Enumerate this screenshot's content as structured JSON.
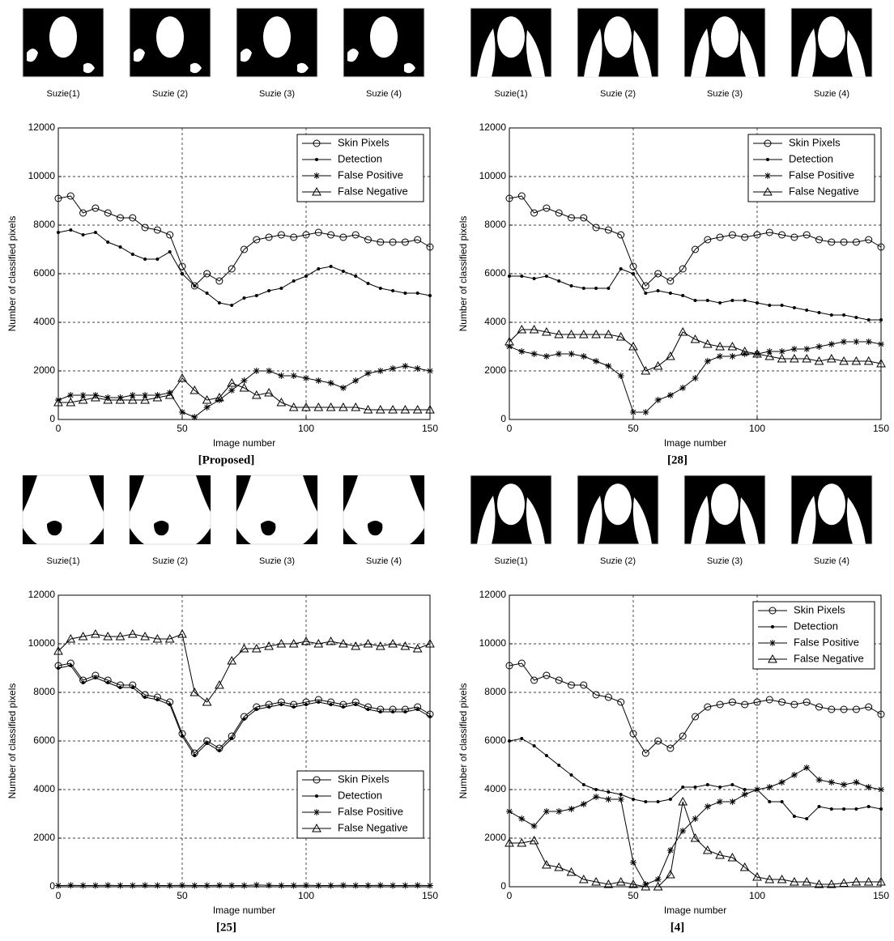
{
  "chart_data": [
    {
      "type": "line",
      "thumbnails": [
        "Suzie(1)",
        "Suzie (2)",
        "Suzie (3)",
        "Suzie (4)"
      ],
      "caption": "[Proposed]",
      "xlabel": "Image number",
      "ylabel": "Number of classified pixels",
      "xlim": [
        0,
        150
      ],
      "ylim": [
        0,
        12000
      ],
      "xticks": [
        0,
        50,
        100,
        150
      ],
      "yticks": [
        0,
        2000,
        4000,
        6000,
        8000,
        10000,
        12000
      ],
      "grid": true,
      "legend": "upper right",
      "x": [
        0,
        5,
        10,
        15,
        20,
        25,
        30,
        35,
        40,
        45,
        50,
        55,
        60,
        65,
        70,
        75,
        80,
        85,
        90,
        95,
        100,
        105,
        110,
        115,
        120,
        125,
        130,
        135,
        140,
        145,
        150
      ],
      "series": [
        {
          "name": "Skin Pixels",
          "color": "#000000",
          "marker": "o",
          "values": [
            9100,
            9200,
            8500,
            8700,
            8500,
            8300,
            8300,
            7900,
            7800,
            7600,
            6300,
            5500,
            6000,
            5700,
            6200,
            7000,
            7400,
            7500,
            7600,
            7500,
            7600,
            7700,
            7600,
            7500,
            7600,
            7400,
            7300,
            7300,
            7300,
            7400,
            7100
          ]
        },
        {
          "name": "Detection",
          "color": "#000000",
          "marker": ".",
          "values": [
            7700,
            7800,
            7600,
            7700,
            7300,
            7100,
            6800,
            6600,
            6600,
            6900,
            6000,
            5500,
            5200,
            4800,
            4700,
            5000,
            5100,
            5300,
            5400,
            5700,
            5900,
            6200,
            6300,
            6100,
            5900,
            5600,
            5400,
            5300,
            5200,
            5200,
            5100
          ]
        },
        {
          "name": "False Positive",
          "color": "#000000",
          "marker": "*",
          "values": [
            800,
            1000,
            1000,
            1000,
            900,
            900,
            1000,
            1000,
            1000,
            1100,
            300,
            100,
            500,
            800,
            1200,
            1600,
            2000,
            2000,
            1800,
            1800,
            1700,
            1600,
            1500,
            1300,
            1600,
            1900,
            2000,
            2100,
            2200,
            2100,
            2000
          ]
        },
        {
          "name": "False Negative",
          "color": "#000000",
          "marker": "^",
          "values": [
            700,
            700,
            800,
            900,
            800,
            800,
            800,
            800,
            900,
            1000,
            1700,
            1200,
            800,
            900,
            1500,
            1300,
            1000,
            1100,
            700,
            500,
            500,
            500,
            500,
            500,
            500,
            400,
            400,
            400,
            400,
            400,
            400
          ]
        }
      ]
    },
    {
      "type": "line",
      "thumbnails": [
        "Suzie(1)",
        "Suzie (2)",
        "Suzie (3)",
        "Suzie (4)"
      ],
      "caption": "[28]",
      "xlabel": "Image number",
      "ylabel": "Number of classified pixels",
      "xlim": [
        0,
        150
      ],
      "ylim": [
        0,
        12000
      ],
      "xticks": [
        0,
        50,
        100,
        150
      ],
      "yticks": [
        0,
        2000,
        4000,
        6000,
        8000,
        10000,
        12000
      ],
      "grid": true,
      "legend": "upper right",
      "x": [
        0,
        5,
        10,
        15,
        20,
        25,
        30,
        35,
        40,
        45,
        50,
        55,
        60,
        65,
        70,
        75,
        80,
        85,
        90,
        95,
        100,
        105,
        110,
        115,
        120,
        125,
        130,
        135,
        140,
        145,
        150
      ],
      "series": [
        {
          "name": "Skin Pixels",
          "color": "#000000",
          "marker": "o",
          "values": [
            9100,
            9200,
            8500,
            8700,
            8500,
            8300,
            8300,
            7900,
            7800,
            7600,
            6300,
            5500,
            6000,
            5700,
            6200,
            7000,
            7400,
            7500,
            7600,
            7500,
            7600,
            7700,
            7600,
            7500,
            7600,
            7400,
            7300,
            7300,
            7300,
            7400,
            7100
          ]
        },
        {
          "name": "Detection",
          "color": "#000000",
          "marker": ".",
          "values": [
            5900,
            5900,
            5800,
            5900,
            5700,
            5500,
            5400,
            5400,
            5400,
            6200,
            6000,
            5200,
            5300,
            5200,
            5100,
            4900,
            4900,
            4800,
            4900,
            4900,
            4800,
            4700,
            4700,
            4600,
            4500,
            4400,
            4300,
            4300,
            4200,
            4100,
            4100
          ]
        },
        {
          "name": "False Positive",
          "color": "#000000",
          "marker": "*",
          "values": [
            3000,
            2800,
            2700,
            2600,
            2700,
            2700,
            2600,
            2400,
            2200,
            1800,
            300,
            300,
            800,
            1000,
            1300,
            1700,
            2400,
            2600,
            2600,
            2700,
            2700,
            2800,
            2800,
            2900,
            2900,
            3000,
            3100,
            3200,
            3200,
            3200,
            3100
          ]
        },
        {
          "name": "False Negative",
          "color": "#000000",
          "marker": "^",
          "values": [
            3200,
            3700,
            3700,
            3600,
            3500,
            3500,
            3500,
            3500,
            3500,
            3400,
            3000,
            2000,
            2200,
            2600,
            3600,
            3300,
            3100,
            3000,
            3000,
            2800,
            2700,
            2600,
            2500,
            2500,
            2500,
            2400,
            2500,
            2400,
            2400,
            2400,
            2300
          ]
        }
      ]
    },
    {
      "type": "line",
      "thumbnails": [
        "Suzie(1)",
        "Suzie (2)",
        "Suzie (3)",
        "Suzie (4)"
      ],
      "caption": "[25]",
      "xlabel": "Image number",
      "ylabel": "Number of classified pixels",
      "xlim": [
        0,
        150
      ],
      "ylim": [
        0,
        12000
      ],
      "xticks": [
        0,
        50,
        100,
        150
      ],
      "yticks": [
        0,
        2000,
        4000,
        6000,
        8000,
        10000,
        12000
      ],
      "grid": true,
      "legend": "lower right",
      "x": [
        0,
        5,
        10,
        15,
        20,
        25,
        30,
        35,
        40,
        45,
        50,
        55,
        60,
        65,
        70,
        75,
        80,
        85,
        90,
        95,
        100,
        105,
        110,
        115,
        120,
        125,
        130,
        135,
        140,
        145,
        150
      ],
      "series": [
        {
          "name": "Skin Pixels",
          "color": "#000000",
          "marker": "o",
          "values": [
            9100,
            9200,
            8500,
            8700,
            8500,
            8300,
            8300,
            7900,
            7800,
            7600,
            6300,
            5500,
            6000,
            5700,
            6200,
            7000,
            7400,
            7500,
            7600,
            7500,
            7600,
            7700,
            7600,
            7500,
            7600,
            7400,
            7300,
            7300,
            7300,
            7400,
            7100
          ]
        },
        {
          "name": "Detection",
          "color": "#000000",
          "marker": ".",
          "values": [
            9000,
            9100,
            8400,
            8600,
            8400,
            8200,
            8200,
            7800,
            7700,
            7500,
            6200,
            5400,
            5900,
            5600,
            6100,
            6900,
            7300,
            7400,
            7500,
            7400,
            7500,
            7600,
            7500,
            7400,
            7500,
            7300,
            7200,
            7200,
            7200,
            7300,
            7000
          ]
        },
        {
          "name": "False Positive",
          "color": "#000000",
          "marker": "*",
          "values": [
            50,
            60,
            50,
            50,
            60,
            50,
            50,
            60,
            50,
            50,
            60,
            50,
            50,
            60,
            50,
            50,
            70,
            60,
            50,
            50,
            60,
            50,
            50,
            60,
            50,
            50,
            60,
            50,
            50,
            60,
            50
          ]
        },
        {
          "name": "False Negative",
          "color": "#000000",
          "marker": "^",
          "values": [
            9700,
            10200,
            10300,
            10400,
            10300,
            10300,
            10400,
            10300,
            10200,
            10200,
            10400,
            8000,
            7600,
            8300,
            9300,
            9800,
            9800,
            9900,
            10000,
            10000,
            10100,
            10000,
            10100,
            10000,
            9900,
            10000,
            9900,
            10000,
            9900,
            9800,
            10000
          ]
        }
      ]
    },
    {
      "type": "line",
      "thumbnails": [
        "Suzie(1)",
        "Suzie (2)",
        "Suzie (3)",
        "Suzie (4)"
      ],
      "caption": "[4]",
      "xlabel": "Image number",
      "ylabel": "Number of classified pixels",
      "xlim": [
        0,
        150
      ],
      "ylim": [
        0,
        12000
      ],
      "xticks": [
        0,
        50,
        100,
        150
      ],
      "yticks": [
        0,
        2000,
        4000,
        6000,
        8000,
        10000,
        12000
      ],
      "grid": true,
      "legend": "upper right",
      "x": [
        0,
        5,
        10,
        15,
        20,
        25,
        30,
        35,
        40,
        45,
        50,
        55,
        60,
        65,
        70,
        75,
        80,
        85,
        90,
        95,
        100,
        105,
        110,
        115,
        120,
        125,
        130,
        135,
        140,
        145,
        150
      ],
      "series": [
        {
          "name": "Skin Pixels",
          "color": "#000000",
          "marker": "o",
          "values": [
            9100,
            9200,
            8500,
            8700,
            8500,
            8300,
            8300,
            7900,
            7800,
            7600,
            6300,
            5500,
            6000,
            5700,
            6200,
            7000,
            7400,
            7500,
            7600,
            7500,
            7600,
            7700,
            7600,
            7500,
            7600,
            7400,
            7300,
            7300,
            7300,
            7400,
            7100
          ]
        },
        {
          "name": "Detection",
          "color": "#000000",
          "marker": ".",
          "values": [
            6000,
            6100,
            5800,
            5400,
            5000,
            4600,
            4200,
            4000,
            3900,
            3800,
            3600,
            3500,
            3500,
            3600,
            4100,
            4100,
            4200,
            4100,
            4200,
            4000,
            4000,
            3500,
            3500,
            2900,
            2800,
            3300,
            3200,
            3200,
            3200,
            3300,
            3200
          ]
        },
        {
          "name": "False Positive",
          "color": "#000000",
          "marker": "*",
          "values": [
            3100,
            2800,
            2500,
            3100,
            3100,
            3200,
            3400,
            3700,
            3600,
            3600,
            1000,
            100,
            300,
            1500,
            2300,
            2800,
            3300,
            3500,
            3500,
            3800,
            4000,
            4100,
            4300,
            4600,
            4900,
            4400,
            4300,
            4200,
            4300,
            4100,
            4000
          ]
        },
        {
          "name": "False Negative",
          "color": "#000000",
          "marker": "^",
          "values": [
            1800,
            1800,
            1900,
            900,
            800,
            600,
            300,
            200,
            100,
            200,
            100,
            0,
            0,
            500,
            3500,
            2000,
            1500,
            1300,
            1200,
            800,
            400,
            300,
            300,
            200,
            200,
            100,
            100,
            150,
            200,
            200,
            200
          ]
        }
      ]
    }
  ]
}
